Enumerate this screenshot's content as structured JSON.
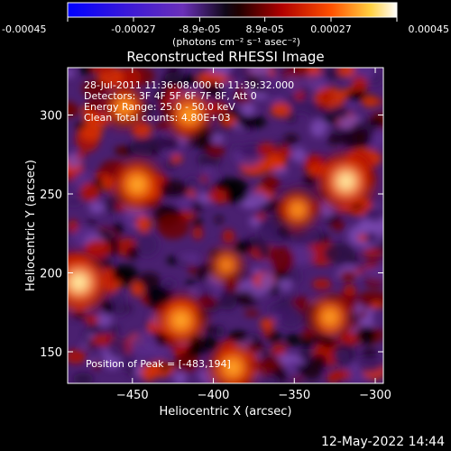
{
  "colorbar": {
    "tick_labels": [
      "-0.00045",
      "-0.00027",
      "-8.9e-05",
      "8.9e-05",
      "0.00027",
      "0.00045"
    ],
    "tick_values": [
      -0.00045,
      -0.00027,
      -8.9e-05,
      8.9e-05,
      0.00027,
      0.00045
    ],
    "range": [
      -0.00045,
      0.00045
    ],
    "units_text": "(photons cm⁻² s⁻¹ asec⁻²)"
  },
  "plot": {
    "title": "Reconstructed RHESSI Image",
    "info_lines": [
      "28-Jul-2011 11:36:08.000 to 11:39:32.000",
      "Detectors: 3F 4F 5F 6F 7F 8F, Att 0",
      "Energy Range: 25.0 - 50.0 keV",
      "Clean    Total counts: 4.80E+03"
    ],
    "peak_text": "Position of Peak = [-483,194]"
  },
  "footer": {
    "timestamp": "12-May-2022 14:44"
  },
  "chart_data": {
    "type": "heatmap",
    "title": "Reconstructed RHESSI Image",
    "xlabel": "Heliocentric X (arcsec)",
    "ylabel": "Heliocentric Y (arcsec)",
    "xlim": [
      -490,
      -295
    ],
    "ylim": [
      130,
      330
    ],
    "xticks": [
      -450,
      -400,
      -350,
      -300
    ],
    "yticks": [
      150,
      200,
      250,
      300
    ],
    "peak_position": [
      -483,
      194
    ],
    "colormap": "rhessi-flame (blue-purple-black-red-orange-yellow-white)",
    "value_range": [
      -0.00045,
      0.00045
    ],
    "bright_sources": [
      {
        "x": -483,
        "y": 194,
        "level": 1.0
      },
      {
        "x": -318,
        "y": 258,
        "level": 0.95
      },
      {
        "x": -447,
        "y": 256,
        "level": 0.8
      },
      {
        "x": -420,
        "y": 170,
        "level": 0.8
      },
      {
        "x": -415,
        "y": 300,
        "level": 0.7
      },
      {
        "x": -388,
        "y": 140,
        "level": 0.75
      },
      {
        "x": -328,
        "y": 172,
        "level": 0.65
      },
      {
        "x": -348,
        "y": 240,
        "level": 0.55
      },
      {
        "x": -455,
        "y": 305,
        "level": 0.6
      },
      {
        "x": -392,
        "y": 205,
        "level": 0.45
      }
    ],
    "grid": false
  }
}
